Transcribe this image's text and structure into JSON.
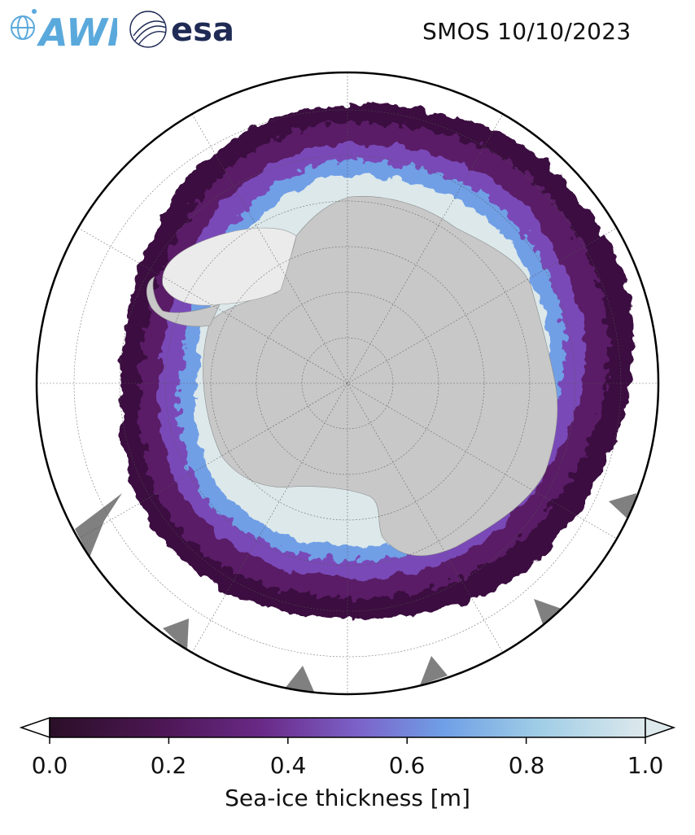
{
  "header": {
    "logos": [
      {
        "name": "awi-logo",
        "text": "AWI",
        "color": "#5aa9dc"
      },
      {
        "name": "esa-logo",
        "text": "esa",
        "color": "#1f2a55"
      }
    ],
    "title": "SMOS 10/10/2023"
  },
  "map": {
    "projection": "south-polar-stereographic",
    "graticule": "dashed-grey",
    "land_color": "#c8c8c8",
    "ice_shelf_color": "#ebebeb",
    "no_data_color": "#808080",
    "frame_color": "#000000"
  },
  "colorbar": {
    "label": "Sea-ice thickness [m]",
    "ticks": [
      "0.0",
      "0.2",
      "0.4",
      "0.6",
      "0.8",
      "1.0"
    ],
    "range": [
      0.0,
      1.0
    ],
    "extend": "both",
    "colormap": [
      "#2a0f27",
      "#4b1652",
      "#6a2a88",
      "#7c63c9",
      "#6f9fe6",
      "#9fcde6",
      "#dde9ec"
    ]
  }
}
